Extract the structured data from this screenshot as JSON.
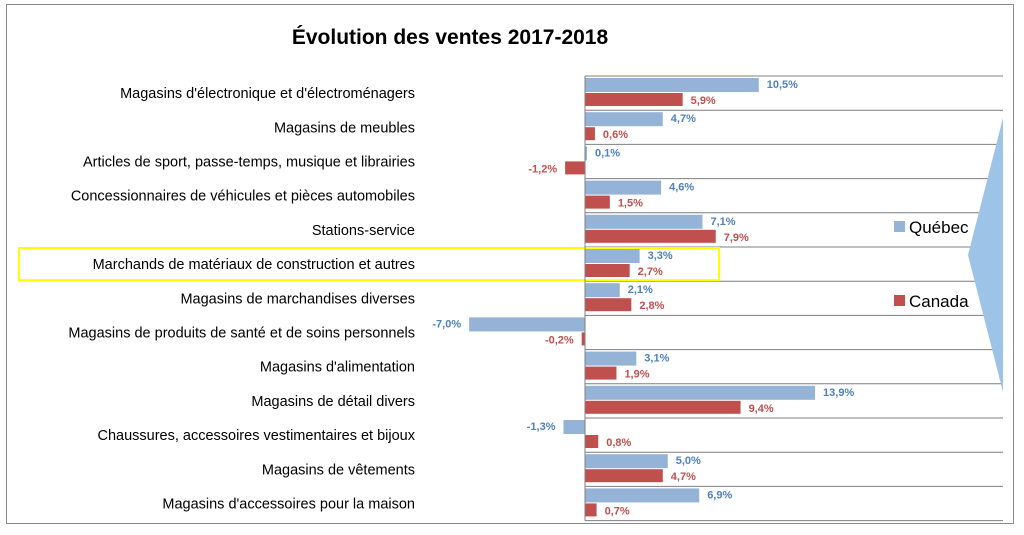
{
  "chart_data": {
    "type": "bar",
    "orientation": "horizontal",
    "title": "Évolution des ventes 2017-2018",
    "xlabel": "",
    "ylabel": "",
    "xlim": [
      -7.0,
      13.9
    ],
    "grid": false,
    "legend_position": "right",
    "categories": [
      "Magasins d'électronique et d'électroménagers",
      "Magasins de meubles",
      "Articles de sport, passe-temps, musique et librairies",
      "Concessionnaires de véhicules et pièces automobiles",
      "Stations-service",
      "Marchands de matériaux de construction et autres",
      "Magasins de marchandises diverses",
      "Magasins de produits de santé et de soins personnels",
      "Magasins d'alimentation",
      "Magasins de détail divers",
      "Chaussures, accessoires vestimentaires et bijoux",
      "Magasins de vêtements",
      "Magasins d'accessoires pour la maison"
    ],
    "series": [
      {
        "name": "Québec",
        "color": "#95b3d7",
        "label_color": "#4f81bd",
        "values": [
          10.5,
          4.7,
          0.1,
          4.6,
          7.1,
          3.3,
          2.1,
          -7.0,
          3.1,
          13.9,
          -1.3,
          5.0,
          6.9
        ],
        "labels": [
          "10,5%",
          "4,7%",
          "0,1%",
          "4,6%",
          "7,1%",
          "3,3%",
          "2,1%",
          "-7,0%",
          "3,1%",
          "13,9%",
          "-1,3%",
          "5,0%",
          "6,9%"
        ]
      },
      {
        "name": "Canada",
        "color": "#c0504d",
        "label_color": "#c0504d",
        "values": [
          5.9,
          0.6,
          -1.2,
          1.5,
          7.9,
          2.7,
          2.8,
          -0.2,
          1.9,
          9.4,
          0.8,
          4.7,
          0.7
        ],
        "labels": [
          "5,9%",
          "0,6%",
          "-1,2%",
          "1,5%",
          "7,9%",
          "2,7%",
          "2,8%",
          "-0,2%",
          "1,9%",
          "9,4%",
          "0,8%",
          "4,7%",
          "0,7%"
        ]
      }
    ],
    "highlighted_category": "Marchands de matériaux de construction et autres",
    "highlight_color": "#ffff00",
    "pointer_color": "#9dc3e6"
  }
}
